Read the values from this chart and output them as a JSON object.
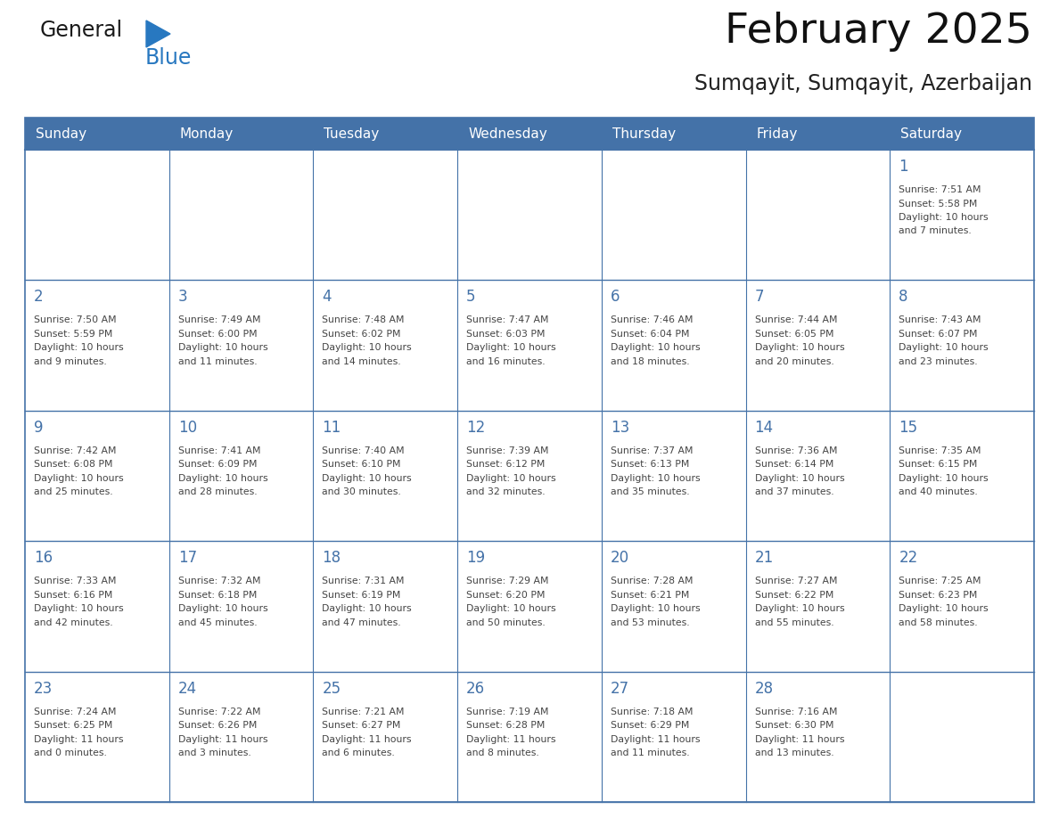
{
  "title": "February 2025",
  "subtitle": "Sumqayit, Sumqayit, Azerbaijan",
  "header_bg": "#4472a8",
  "header_text_color": "#ffffff",
  "header_days": [
    "Sunday",
    "Monday",
    "Tuesday",
    "Wednesday",
    "Thursday",
    "Friday",
    "Saturday"
  ],
  "cell_border_color": "#4472a8",
  "day_number_color": "#4472a8",
  "info_text_color": "#444444",
  "bg_color": "#ffffff",
  "logo_general_color": "#1a1a1a",
  "logo_blue_color": "#2878c0",
  "calendar_data": [
    [
      null,
      null,
      null,
      null,
      null,
      null,
      {
        "day": 1,
        "sunrise": "7:51 AM",
        "sunset": "5:58 PM",
        "daylight": "10 hours and 7 minutes."
      }
    ],
    [
      {
        "day": 2,
        "sunrise": "7:50 AM",
        "sunset": "5:59 PM",
        "daylight": "10 hours and 9 minutes."
      },
      {
        "day": 3,
        "sunrise": "7:49 AM",
        "sunset": "6:00 PM",
        "daylight": "10 hours and 11 minutes."
      },
      {
        "day": 4,
        "sunrise": "7:48 AM",
        "sunset": "6:02 PM",
        "daylight": "10 hours and 14 minutes."
      },
      {
        "day": 5,
        "sunrise": "7:47 AM",
        "sunset": "6:03 PM",
        "daylight": "10 hours and 16 minutes."
      },
      {
        "day": 6,
        "sunrise": "7:46 AM",
        "sunset": "6:04 PM",
        "daylight": "10 hours and 18 minutes."
      },
      {
        "day": 7,
        "sunrise": "7:44 AM",
        "sunset": "6:05 PM",
        "daylight": "10 hours and 20 minutes."
      },
      {
        "day": 8,
        "sunrise": "7:43 AM",
        "sunset": "6:07 PM",
        "daylight": "10 hours and 23 minutes."
      }
    ],
    [
      {
        "day": 9,
        "sunrise": "7:42 AM",
        "sunset": "6:08 PM",
        "daylight": "10 hours and 25 minutes."
      },
      {
        "day": 10,
        "sunrise": "7:41 AM",
        "sunset": "6:09 PM",
        "daylight": "10 hours and 28 minutes."
      },
      {
        "day": 11,
        "sunrise": "7:40 AM",
        "sunset": "6:10 PM",
        "daylight": "10 hours and 30 minutes."
      },
      {
        "day": 12,
        "sunrise": "7:39 AM",
        "sunset": "6:12 PM",
        "daylight": "10 hours and 32 minutes."
      },
      {
        "day": 13,
        "sunrise": "7:37 AM",
        "sunset": "6:13 PM",
        "daylight": "10 hours and 35 minutes."
      },
      {
        "day": 14,
        "sunrise": "7:36 AM",
        "sunset": "6:14 PM",
        "daylight": "10 hours and 37 minutes."
      },
      {
        "day": 15,
        "sunrise": "7:35 AM",
        "sunset": "6:15 PM",
        "daylight": "10 hours and 40 minutes."
      }
    ],
    [
      {
        "day": 16,
        "sunrise": "7:33 AM",
        "sunset": "6:16 PM",
        "daylight": "10 hours and 42 minutes."
      },
      {
        "day": 17,
        "sunrise": "7:32 AM",
        "sunset": "6:18 PM",
        "daylight": "10 hours and 45 minutes."
      },
      {
        "day": 18,
        "sunrise": "7:31 AM",
        "sunset": "6:19 PM",
        "daylight": "10 hours and 47 minutes."
      },
      {
        "day": 19,
        "sunrise": "7:29 AM",
        "sunset": "6:20 PM",
        "daylight": "10 hours and 50 minutes."
      },
      {
        "day": 20,
        "sunrise": "7:28 AM",
        "sunset": "6:21 PM",
        "daylight": "10 hours and 53 minutes."
      },
      {
        "day": 21,
        "sunrise": "7:27 AM",
        "sunset": "6:22 PM",
        "daylight": "10 hours and 55 minutes."
      },
      {
        "day": 22,
        "sunrise": "7:25 AM",
        "sunset": "6:23 PM",
        "daylight": "10 hours and 58 minutes."
      }
    ],
    [
      {
        "day": 23,
        "sunrise": "7:24 AM",
        "sunset": "6:25 PM",
        "daylight": "11 hours and 0 minutes."
      },
      {
        "day": 24,
        "sunrise": "7:22 AM",
        "sunset": "6:26 PM",
        "daylight": "11 hours and 3 minutes."
      },
      {
        "day": 25,
        "sunrise": "7:21 AM",
        "sunset": "6:27 PM",
        "daylight": "11 hours and 6 minutes."
      },
      {
        "day": 26,
        "sunrise": "7:19 AM",
        "sunset": "6:28 PM",
        "daylight": "11 hours and 8 minutes."
      },
      {
        "day": 27,
        "sunrise": "7:18 AM",
        "sunset": "6:29 PM",
        "daylight": "11 hours and 11 minutes."
      },
      {
        "day": 28,
        "sunrise": "7:16 AM",
        "sunset": "6:30 PM",
        "daylight": "11 hours and 13 minutes."
      },
      null
    ]
  ]
}
